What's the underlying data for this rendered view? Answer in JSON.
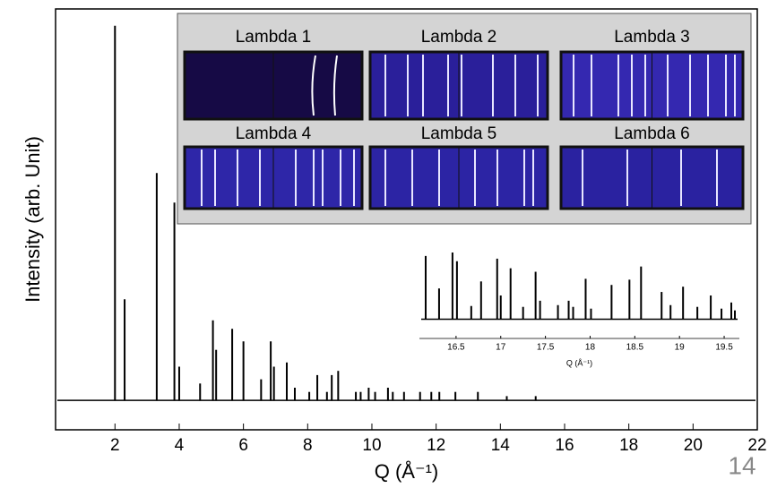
{
  "chart_data": [
    {
      "type": "stem",
      "x_label": "Q (Å⁻¹)",
      "y_label": "Intensity (arb. Unit)",
      "xlim": [
        0.15,
        22
      ],
      "ylim": [
        0,
        100
      ],
      "xticks": [
        2,
        4,
        6,
        8,
        10,
        12,
        14,
        16,
        18,
        20,
        22
      ],
      "baseline": 7,
      "series": [
        {
          "color": "#000000",
          "x": [
            2.0,
            2.3,
            3.3,
            3.85,
            4.0,
            4.65,
            5.05,
            5.15,
            5.65,
            6.0,
            6.55,
            6.85,
            6.95,
            7.35,
            7.6,
            8.05,
            8.3,
            8.6,
            8.75,
            8.95,
            9.5,
            9.65,
            9.9,
            10.1,
            10.5,
            10.65,
            11.0,
            11.5,
            11.85,
            12.1,
            12.6,
            13.3,
            14.2,
            15.1
          ],
          "values": [
            96,
            31,
            61,
            54,
            15,
            11,
            26,
            19,
            24,
            21,
            12,
            21,
            15,
            16,
            10,
            9,
            13,
            9,
            13,
            14,
            9,
            9,
            10,
            9,
            10,
            9,
            9,
            9,
            9,
            9,
            9,
            9,
            8,
            8
          ]
        }
      ]
    },
    {
      "type": "stem",
      "x_label": "Q (Å⁻¹)",
      "xlim": [
        16.09,
        19.67
      ],
      "ylim": [
        0,
        100
      ],
      "xticks": [
        16.5,
        17,
        17.5,
        18,
        18.5,
        19,
        19.5
      ],
      "baseline": 22,
      "series": [
        {
          "color": "#000000",
          "x": [
            16.16,
            16.31,
            16.46,
            16.51,
            16.67,
            16.78,
            16.96,
            17.0,
            17.11,
            17.25,
            17.39,
            17.44,
            17.64,
            17.76,
            17.81,
            17.95,
            18.01,
            18.24,
            18.44,
            18.57,
            18.8,
            18.9,
            19.04,
            19.2,
            19.35,
            19.47,
            19.58,
            19.62
          ],
          "values": [
            94,
            57,
            98,
            88,
            37,
            65,
            91,
            49,
            80,
            36,
            76,
            43,
            38,
            43,
            36,
            68,
            34,
            61,
            67,
            82,
            53,
            38,
            59,
            36,
            49,
            34,
            41,
            32
          ]
        }
      ]
    }
  ],
  "image_panel": {
    "labels": [
      "Lambda 1",
      "Lambda 2",
      "Lambda 3",
      "Lambda 4",
      "Lambda 5",
      "Lambda 6"
    ]
  },
  "page_number": "14"
}
